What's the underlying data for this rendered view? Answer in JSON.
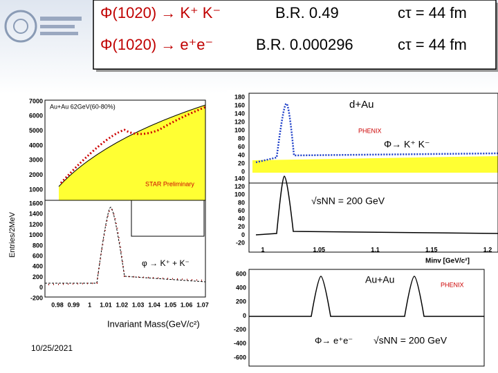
{
  "header": {
    "rows": [
      {
        "decay": "Φ(1020) → K⁺ K⁻",
        "br": "B.R. 0.49",
        "ctau": "cτ = 44 fm"
      },
      {
        "decay": "Φ(1020) → e⁺e⁻",
        "br": "B.R. 0.000296",
        "ctau": "cτ = 44 fm"
      }
    ]
  },
  "left_plot": {
    "y_label": "Entries/2MeV",
    "top_panel": {
      "label": "Au+Au 62GeV(60-80%)",
      "note": "STAR Preliminary",
      "yticks": [
        7000,
        6000,
        5000,
        4000,
        3000,
        2000,
        1000
      ]
    },
    "bottom_panel": {
      "label": "φ → K⁺ + K⁻",
      "yticks": [
        1600,
        1400,
        1200,
        1000,
        800,
        600,
        400,
        200,
        0,
        -200
      ],
      "xticks": [
        0.98,
        0.99,
        1,
        1.01,
        1.02,
        1.03,
        1.04,
        1.05,
        1.06,
        1.07
      ],
      "x_label": "Invariant Mass(GeV/c²)"
    }
  },
  "right_top_plot": {
    "top_panel": {
      "label": "d+Au",
      "experiment": "PHENIX",
      "channel": "Φ→ K⁺ K⁻",
      "yticks": [
        180,
        160,
        140,
        120,
        100,
        80,
        60,
        40,
        20,
        0
      ]
    },
    "bottom_panel": {
      "energy": "√sNN = 200 GeV",
      "yticks": [
        140,
        120,
        100,
        80,
        60,
        40,
        20,
        0,
        -20
      ],
      "xticks": [
        1,
        1.05,
        1.1,
        1.15,
        1.2
      ],
      "x_label": "Minv [GeV/c²]"
    }
  },
  "right_bottom_plot": {
    "label": "Au+Au",
    "experiment": "PHENIX",
    "channel": "Φ→ e⁺e⁻",
    "energy": "√sNN = 200 GeV",
    "yticks": [
      600,
      400,
      200,
      0,
      -200,
      -400,
      -600
    ]
  },
  "footer": {
    "date": "10/25/2021"
  }
}
